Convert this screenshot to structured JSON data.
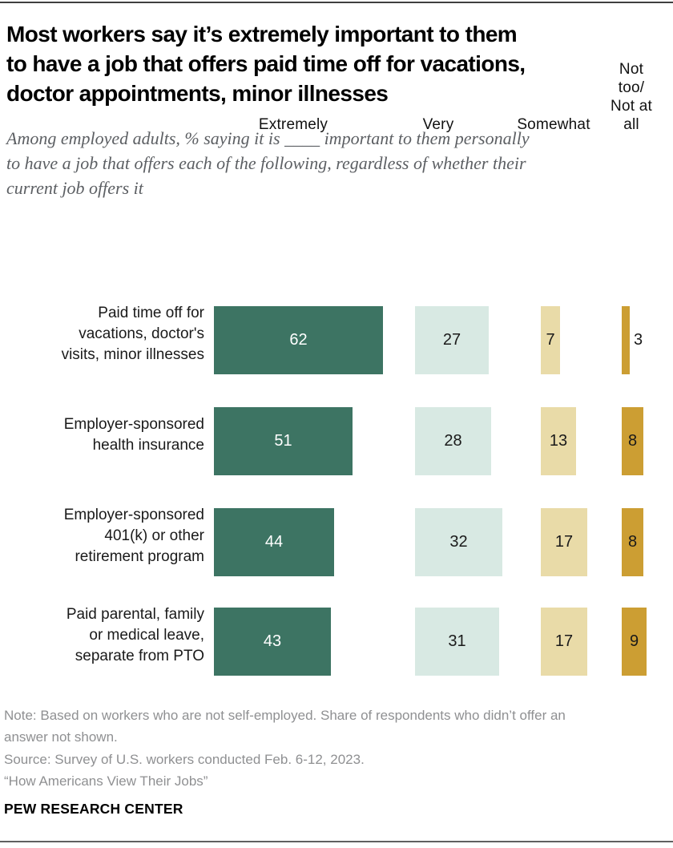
{
  "header": {
    "title": "Most workers say it’s extremely important to them\nto have a job that offers paid time off for vacations,\ndoctor appointments, minor illnesses",
    "subtitle": "Among employed adults, % saying it is ____ important to them personally\nto have a job that offers each of the following, regardless of whether their\ncurrent job offers it"
  },
  "chart_data": {
    "type": "bar",
    "orientation": "horizontal",
    "layout": "faceted-columns",
    "unit": "percent",
    "xlim_per_facet": [
      0,
      62
    ],
    "grid": false,
    "legend_position": "column-headers",
    "columns": [
      "Extremely",
      "Very",
      "Somewhat",
      "Not too/\nNot at\nall"
    ],
    "categories": [
      "Paid time off for\nvacations, doctor's\nvisits, minor illnesses",
      "Employer-sponsored\nhealth insurance",
      "Employer-sponsored\n401(k) or other\nretirement program",
      "Paid parental, family\nor medical leave,\nseparate from PTO"
    ],
    "series": [
      {
        "name": "Extremely",
        "color": "#3d7463",
        "text_color": "#ffffff",
        "values": [
          62,
          51,
          44,
          43
        ]
      },
      {
        "name": "Very",
        "color": "#d8e9e3",
        "text_color": "#1a1a1a",
        "values": [
          27,
          28,
          32,
          31
        ]
      },
      {
        "name": "Somewhat",
        "color": "#e9dba8",
        "text_color": "#1a1a1a",
        "values": [
          7,
          13,
          17,
          17
        ]
      },
      {
        "name": "Not too/Not at all",
        "color": "#cc9e33",
        "text_color": "#1a1a1a",
        "values": [
          3,
          8,
          8,
          9
        ]
      }
    ]
  },
  "footer": {
    "note": "Note: Based on workers who are not self-employed. Share of respondents who didn’t offer an\nanswer not shown.",
    "source": "Source: Survey of U.S. workers conducted Feb. 6-12, 2023.",
    "report": "“How Americans View Their Jobs”",
    "brand": "PEW RESEARCH CENTER"
  }
}
